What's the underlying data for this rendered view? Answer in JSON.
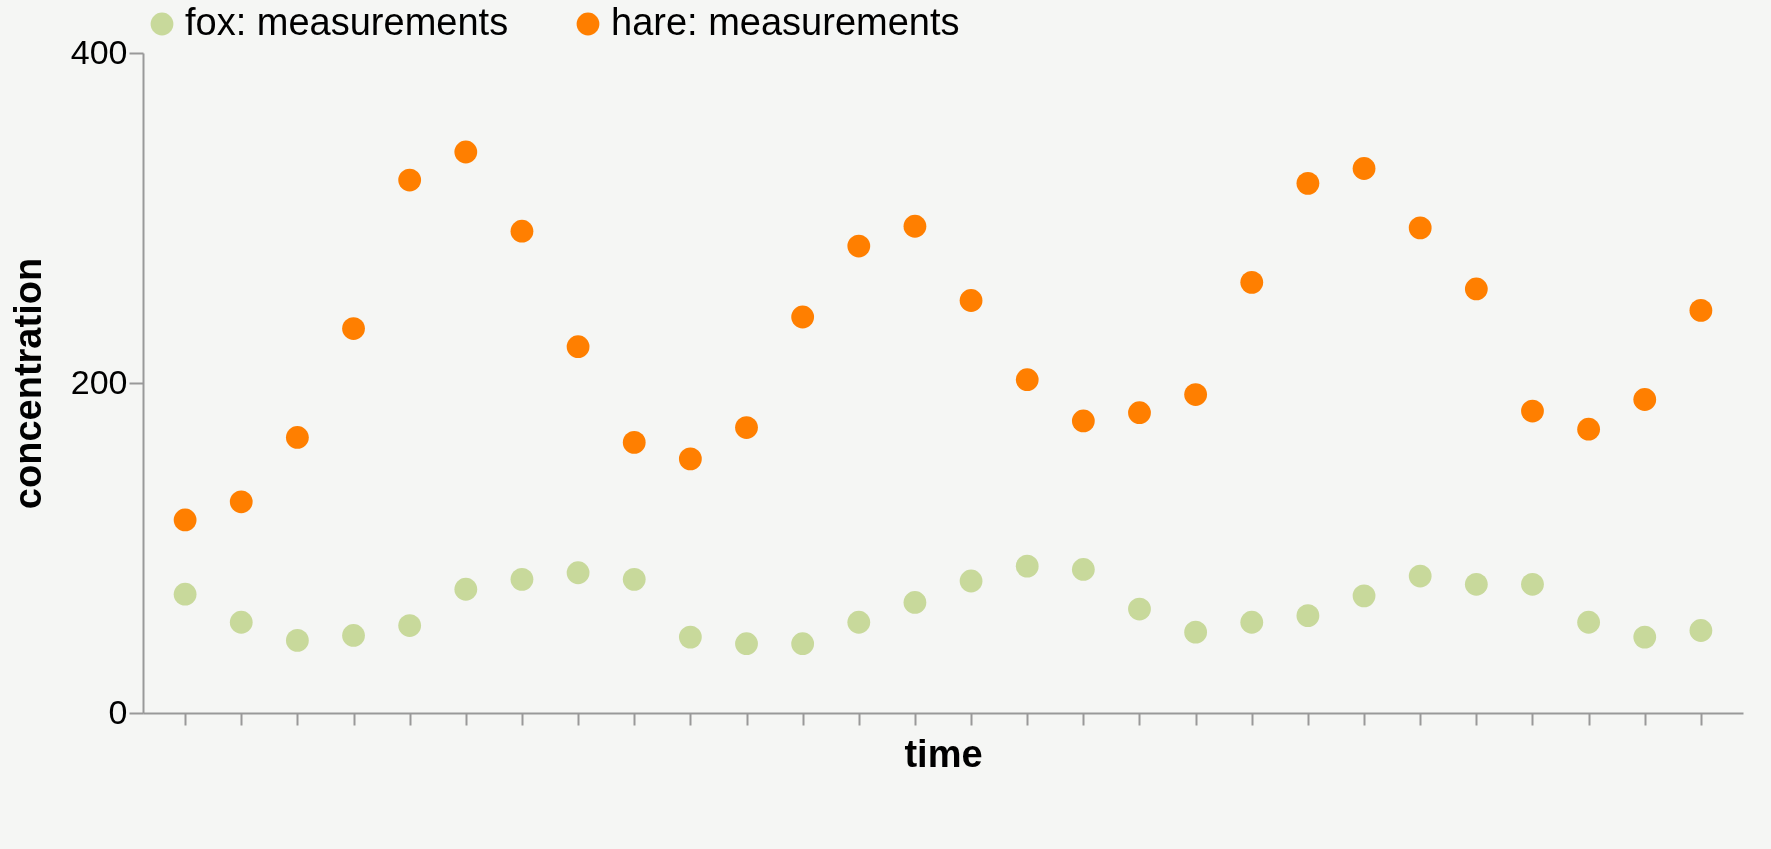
{
  "chart_data": {
    "type": "scatter",
    "xlabel": "time",
    "ylabel": "concentration",
    "categories": [
      null,
      null,
      null,
      null,
      null,
      null,
      null,
      null,
      null,
      null,
      null,
      null,
      null,
      null,
      null,
      null,
      null,
      null,
      null,
      null,
      null,
      null,
      null,
      null,
      null,
      null,
      null,
      null
    ],
    "series": [
      {
        "name": "fox: measurements",
        "color": "#c8d99b",
        "values": [
          72,
          55,
          44,
          47,
          53,
          75,
          81,
          85,
          81,
          46,
          42,
          42,
          55,
          67,
          80,
          89,
          87,
          63,
          49,
          55,
          59,
          71,
          83,
          78,
          78,
          55,
          46,
          50
        ]
      },
      {
        "name": "hare: measurements",
        "color": "#ff7f00",
        "values": [
          117,
          128,
          167,
          233,
          323,
          340,
          292,
          222,
          164,
          154,
          173,
          240,
          283,
          295,
          250,
          202,
          177,
          182,
          193,
          261,
          321,
          330,
          294,
          257,
          183,
          172,
          190,
          244
        ]
      }
    ],
    "ylim": [
      0,
      400
    ],
    "yticks": [
      0,
      200,
      400
    ],
    "grid": false,
    "legend": "top",
    "marker": "circle",
    "tick_labels": "y"
  }
}
